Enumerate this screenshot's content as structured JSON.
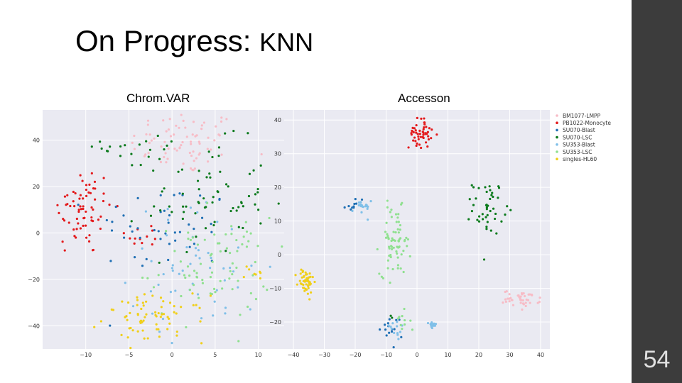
{
  "slide": {
    "title_main": "On Progress: ",
    "title_suffix": "KNN",
    "page_number": "54"
  },
  "colors": {
    "BM1077-LMPP": "#f7bcc6",
    "PB1022-Monocyte": "#e31a1c",
    "SU070-Blast": "#1f6fb4",
    "SU070-LSC": "#0b7a1c",
    "SU353-Blast": "#7fbfe8",
    "SU353-LSC": "#8fe08f",
    "singles-HL60": "#f0cf1a",
    "plot_bg": "#eaeaf2",
    "grid": "#ffffff",
    "right_bar": "#3c3c3c"
  },
  "chart_data": [
    {
      "type": "scatter",
      "title": "Chrom.VAR",
      "xlabel": "",
      "ylabel": "",
      "xlim": [
        -15,
        13
      ],
      "ylim": [
        -50,
        53
      ],
      "xticks": [
        -10,
        -5,
        0,
        5,
        10
      ],
      "yticks": [
        -40,
        -20,
        0,
        20,
        40
      ],
      "grid": true,
      "series": [
        {
          "name": "BM1077-LMPP",
          "clusters": [
            {
              "cx": 1.5,
              "cy": 39,
              "sx": 3.2,
              "sy": 7,
              "n": 75
            }
          ]
        },
        {
          "name": "PB1022-Monocyte",
          "clusters": [
            {
              "cx": -10.5,
              "cy": 10,
              "sx": 1.8,
              "sy": 10,
              "n": 70
            },
            {
              "cx": -3,
              "cy": -1,
              "sx": 1.2,
              "sy": 3,
              "n": 12
            }
          ]
        },
        {
          "name": "SU070-Blast",
          "clusters": [
            {
              "cx": -1,
              "cy": 2,
              "sx": 4,
              "sy": 10,
              "n": 45
            }
          ]
        },
        {
          "name": "SU070-LSC",
          "clusters": [
            {
              "cx": 4,
              "cy": 15,
              "sx": 3.5,
              "sy": 12,
              "n": 70
            },
            {
              "cx": -3,
              "cy": 37,
              "sx": 2.5,
              "sy": 5,
              "n": 20
            }
          ]
        },
        {
          "name": "SU353-Blast",
          "clusters": [
            {
              "cx": 3,
              "cy": -15,
              "sx": 4,
              "sy": 14,
              "n": 55
            }
          ]
        },
        {
          "name": "SU353-LSC",
          "clusters": [
            {
              "cx": 4.5,
              "cy": -15,
              "sx": 3.5,
              "sy": 11,
              "n": 80
            }
          ]
        },
        {
          "name": "singles-HL60",
          "clusters": [
            {
              "cx": -2,
              "cy": -37,
              "sx": 3,
              "sy": 5,
              "n": 70
            },
            {
              "cx": 9.5,
              "cy": -17,
              "sx": 0.8,
              "sy": 3,
              "n": 8
            }
          ]
        }
      ]
    },
    {
      "type": "scatter",
      "title": "Accesson",
      "xlabel": "",
      "ylabel": "",
      "xlim": [
        -43,
        43
      ],
      "ylim": [
        -28,
        43
      ],
      "xticks": [
        -40,
        -30,
        -20,
        -10,
        0,
        10,
        20,
        30,
        40
      ],
      "yticks": [
        -20,
        -10,
        0,
        10,
        20,
        30,
        40
      ],
      "grid": true,
      "legend": {
        "placement": "outside-right",
        "entries": [
          "BM1077-LMPP",
          "PB1022-Monocyte",
          "SU070-Blast",
          "SU070-LSC",
          "SU353-Blast",
          "SU353-LSC",
          "singles-HL60"
        ]
      },
      "series": [
        {
          "name": "BM1077-LMPP",
          "clusters": [
            {
              "cx": 34,
              "cy": -13,
              "sx": 3,
              "sy": 1.2,
              "n": 45
            }
          ]
        },
        {
          "name": "PB1022-Monocyte",
          "clusters": [
            {
              "cx": 1,
              "cy": 36,
              "sx": 1.8,
              "sy": 2.2,
              "n": 50
            }
          ]
        },
        {
          "name": "SU070-Blast",
          "clusters": [
            {
              "cx": -20,
              "cy": 15,
              "sx": 1.5,
              "sy": 1,
              "n": 10
            },
            {
              "cx": -8,
              "cy": -22,
              "sx": 2,
              "sy": 2.5,
              "n": 15
            }
          ]
        },
        {
          "name": "SU070-LSC",
          "clusters": [
            {
              "cx": 23,
              "cy": 14,
              "sx": 2.5,
              "sy": 4,
              "n": 45
            },
            {
              "cx": -9,
              "cy": -19,
              "sx": 0.5,
              "sy": 0.5,
              "n": 2
            }
          ]
        },
        {
          "name": "SU353-Blast",
          "clusters": [
            {
              "cx": -18,
              "cy": 14,
              "sx": 1.5,
              "sy": 1.2,
              "n": 18
            },
            {
              "cx": 5,
              "cy": -21,
              "sx": 0.6,
              "sy": 0.6,
              "n": 15
            },
            {
              "cx": -7,
              "cy": -22,
              "sx": 2,
              "sy": 2,
              "n": 12
            }
          ]
        },
        {
          "name": "SU353-LSC",
          "clusters": [
            {
              "cx": -7,
              "cy": 4,
              "sx": 2.5,
              "sy": 5,
              "n": 70
            },
            {
              "cx": -6,
              "cy": -21,
              "sx": 2,
              "sy": 2,
              "n": 10
            }
          ]
        },
        {
          "name": "singles-HL60",
          "clusters": [
            {
              "cx": -36,
              "cy": -8,
              "sx": 1.3,
              "sy": 2,
              "n": 50
            }
          ]
        }
      ]
    }
  ]
}
